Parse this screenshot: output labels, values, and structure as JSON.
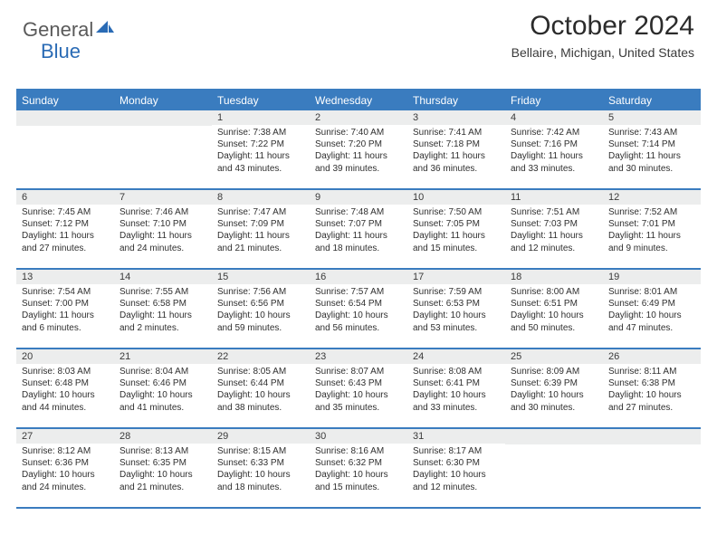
{
  "brand": {
    "part1": "General",
    "part2": "Blue"
  },
  "title": "October 2024",
  "location": "Bellaire, Michigan, United States",
  "colors": {
    "brand_blue": "#2a6bb5",
    "header_blue": "#3a7cbf",
    "row_grey": "#eceded",
    "text": "#2b2b2b"
  },
  "dow": [
    "Sunday",
    "Monday",
    "Tuesday",
    "Wednesday",
    "Thursday",
    "Friday",
    "Saturday"
  ],
  "weeks": [
    [
      {
        "n": "",
        "sr": "",
        "ss": "",
        "dl": ""
      },
      {
        "n": "",
        "sr": "",
        "ss": "",
        "dl": ""
      },
      {
        "n": "1",
        "sr": "Sunrise: 7:38 AM",
        "ss": "Sunset: 7:22 PM",
        "dl": "Daylight: 11 hours and 43 minutes."
      },
      {
        "n": "2",
        "sr": "Sunrise: 7:40 AM",
        "ss": "Sunset: 7:20 PM",
        "dl": "Daylight: 11 hours and 39 minutes."
      },
      {
        "n": "3",
        "sr": "Sunrise: 7:41 AM",
        "ss": "Sunset: 7:18 PM",
        "dl": "Daylight: 11 hours and 36 minutes."
      },
      {
        "n": "4",
        "sr": "Sunrise: 7:42 AM",
        "ss": "Sunset: 7:16 PM",
        "dl": "Daylight: 11 hours and 33 minutes."
      },
      {
        "n": "5",
        "sr": "Sunrise: 7:43 AM",
        "ss": "Sunset: 7:14 PM",
        "dl": "Daylight: 11 hours and 30 minutes."
      }
    ],
    [
      {
        "n": "6",
        "sr": "Sunrise: 7:45 AM",
        "ss": "Sunset: 7:12 PM",
        "dl": "Daylight: 11 hours and 27 minutes."
      },
      {
        "n": "7",
        "sr": "Sunrise: 7:46 AM",
        "ss": "Sunset: 7:10 PM",
        "dl": "Daylight: 11 hours and 24 minutes."
      },
      {
        "n": "8",
        "sr": "Sunrise: 7:47 AM",
        "ss": "Sunset: 7:09 PM",
        "dl": "Daylight: 11 hours and 21 minutes."
      },
      {
        "n": "9",
        "sr": "Sunrise: 7:48 AM",
        "ss": "Sunset: 7:07 PM",
        "dl": "Daylight: 11 hours and 18 minutes."
      },
      {
        "n": "10",
        "sr": "Sunrise: 7:50 AM",
        "ss": "Sunset: 7:05 PM",
        "dl": "Daylight: 11 hours and 15 minutes."
      },
      {
        "n": "11",
        "sr": "Sunrise: 7:51 AM",
        "ss": "Sunset: 7:03 PM",
        "dl": "Daylight: 11 hours and 12 minutes."
      },
      {
        "n": "12",
        "sr": "Sunrise: 7:52 AM",
        "ss": "Sunset: 7:01 PM",
        "dl": "Daylight: 11 hours and 9 minutes."
      }
    ],
    [
      {
        "n": "13",
        "sr": "Sunrise: 7:54 AM",
        "ss": "Sunset: 7:00 PM",
        "dl": "Daylight: 11 hours and 6 minutes."
      },
      {
        "n": "14",
        "sr": "Sunrise: 7:55 AM",
        "ss": "Sunset: 6:58 PM",
        "dl": "Daylight: 11 hours and 2 minutes."
      },
      {
        "n": "15",
        "sr": "Sunrise: 7:56 AM",
        "ss": "Sunset: 6:56 PM",
        "dl": "Daylight: 10 hours and 59 minutes."
      },
      {
        "n": "16",
        "sr": "Sunrise: 7:57 AM",
        "ss": "Sunset: 6:54 PM",
        "dl": "Daylight: 10 hours and 56 minutes."
      },
      {
        "n": "17",
        "sr": "Sunrise: 7:59 AM",
        "ss": "Sunset: 6:53 PM",
        "dl": "Daylight: 10 hours and 53 minutes."
      },
      {
        "n": "18",
        "sr": "Sunrise: 8:00 AM",
        "ss": "Sunset: 6:51 PM",
        "dl": "Daylight: 10 hours and 50 minutes."
      },
      {
        "n": "19",
        "sr": "Sunrise: 8:01 AM",
        "ss": "Sunset: 6:49 PM",
        "dl": "Daylight: 10 hours and 47 minutes."
      }
    ],
    [
      {
        "n": "20",
        "sr": "Sunrise: 8:03 AM",
        "ss": "Sunset: 6:48 PM",
        "dl": "Daylight: 10 hours and 44 minutes."
      },
      {
        "n": "21",
        "sr": "Sunrise: 8:04 AM",
        "ss": "Sunset: 6:46 PM",
        "dl": "Daylight: 10 hours and 41 minutes."
      },
      {
        "n": "22",
        "sr": "Sunrise: 8:05 AM",
        "ss": "Sunset: 6:44 PM",
        "dl": "Daylight: 10 hours and 38 minutes."
      },
      {
        "n": "23",
        "sr": "Sunrise: 8:07 AM",
        "ss": "Sunset: 6:43 PM",
        "dl": "Daylight: 10 hours and 35 minutes."
      },
      {
        "n": "24",
        "sr": "Sunrise: 8:08 AM",
        "ss": "Sunset: 6:41 PM",
        "dl": "Daylight: 10 hours and 33 minutes."
      },
      {
        "n": "25",
        "sr": "Sunrise: 8:09 AM",
        "ss": "Sunset: 6:39 PM",
        "dl": "Daylight: 10 hours and 30 minutes."
      },
      {
        "n": "26",
        "sr": "Sunrise: 8:11 AM",
        "ss": "Sunset: 6:38 PM",
        "dl": "Daylight: 10 hours and 27 minutes."
      }
    ],
    [
      {
        "n": "27",
        "sr": "Sunrise: 8:12 AM",
        "ss": "Sunset: 6:36 PM",
        "dl": "Daylight: 10 hours and 24 minutes."
      },
      {
        "n": "28",
        "sr": "Sunrise: 8:13 AM",
        "ss": "Sunset: 6:35 PM",
        "dl": "Daylight: 10 hours and 21 minutes."
      },
      {
        "n": "29",
        "sr": "Sunrise: 8:15 AM",
        "ss": "Sunset: 6:33 PM",
        "dl": "Daylight: 10 hours and 18 minutes."
      },
      {
        "n": "30",
        "sr": "Sunrise: 8:16 AM",
        "ss": "Sunset: 6:32 PM",
        "dl": "Daylight: 10 hours and 15 minutes."
      },
      {
        "n": "31",
        "sr": "Sunrise: 8:17 AM",
        "ss": "Sunset: 6:30 PM",
        "dl": "Daylight: 10 hours and 12 minutes."
      },
      {
        "n": "",
        "sr": "",
        "ss": "",
        "dl": ""
      },
      {
        "n": "",
        "sr": "",
        "ss": "",
        "dl": ""
      }
    ]
  ]
}
